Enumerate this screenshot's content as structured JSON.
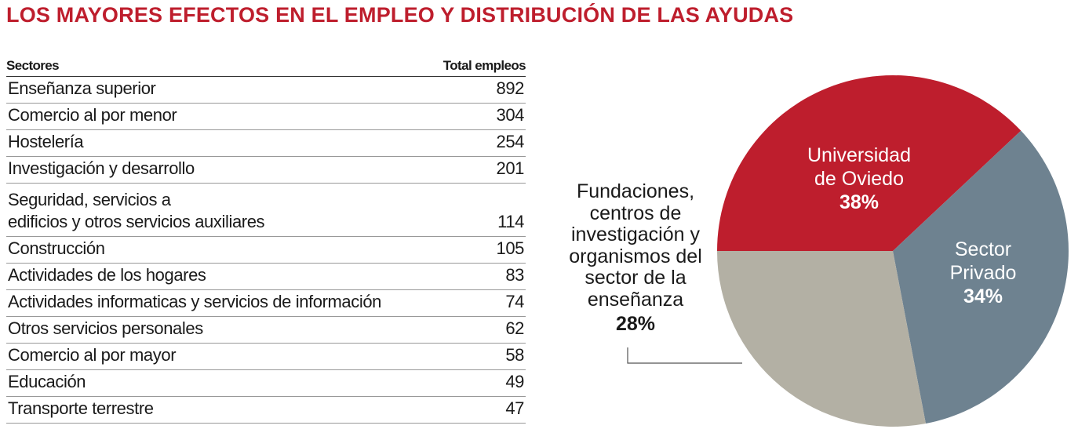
{
  "title": "LOS MAYORES EFECTOS EN EL EMPLEO Y DISTRIBUCIÓN DE LAS AYUDAS",
  "table": {
    "headers": [
      "Sectores",
      "Total empleos"
    ],
    "rows": [
      {
        "sector": "Enseñanza superior",
        "total": "892"
      },
      {
        "sector": "Comercio al por menor",
        "total": "304"
      },
      {
        "sector": "Hostelería",
        "total": "254"
      },
      {
        "sector": "Investigación y desarrollo",
        "total": "201"
      },
      {
        "sector": "Seguridad, servicios a\nedificios y otros servicios auxiliares",
        "total": "114"
      },
      {
        "sector": "Construcción",
        "total": "105"
      },
      {
        "sector": "Actividades de los hogares",
        "total": "83"
      },
      {
        "sector": "Actividades informaticas y servicios de información",
        "total": "74"
      },
      {
        "sector": "Otros servicios personales",
        "total": "62"
      },
      {
        "sector": "Comercio al por mayor",
        "total": "58"
      },
      {
        "sector": "Educación",
        "total": "49"
      },
      {
        "sector": "Transporte terrestre",
        "total": "47"
      }
    ]
  },
  "chart_data": {
    "type": "pie",
    "start": "left (9 o'clock), clockwise",
    "slices": [
      {
        "label_lines": [
          "Universidad",
          "de Oviedo"
        ],
        "value": 38,
        "value_label": "38%",
        "color": "#be1e2d",
        "label_color": "#ffffff"
      },
      {
        "label_lines": [
          "Sector",
          "Privado"
        ],
        "value": 34,
        "value_label": "34%",
        "color": "#6e8290",
        "label_color": "#ffffff"
      },
      {
        "label_lines": [
          "Fundaciones,",
          "centros de",
          "investigación y",
          "organismos del",
          "sector de la",
          "enseñanza"
        ],
        "value": 28,
        "value_label": "28%",
        "color": "#b3b0a4",
        "label_color": "#1a1a1a"
      }
    ]
  }
}
